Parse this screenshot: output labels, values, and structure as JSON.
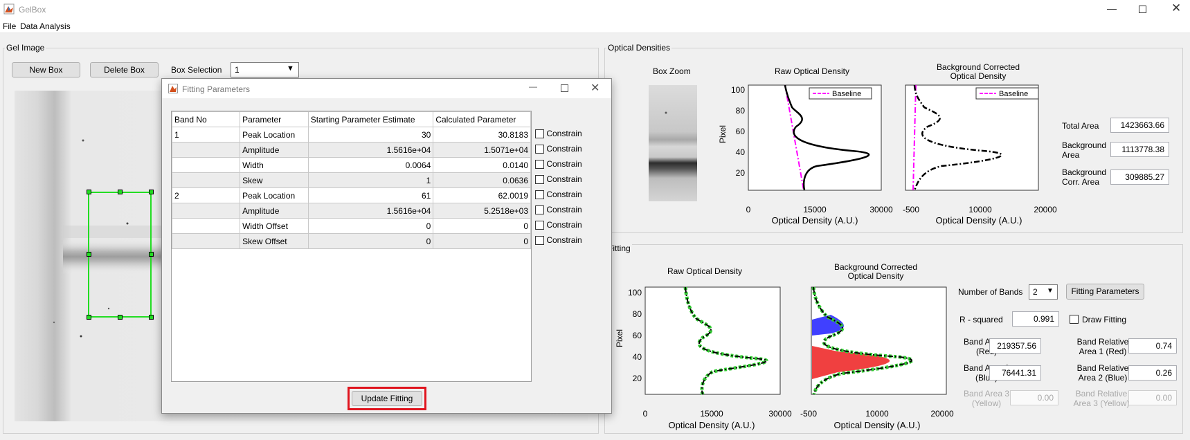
{
  "app": {
    "title": "GelBox"
  },
  "menu": [
    "File",
    "Data Analysis"
  ],
  "gel_panel": {
    "title": "Gel Image",
    "new_box": "New Box",
    "delete_box": "Delete Box",
    "box_selection_label": "Box Selection",
    "box_selection_value": "1"
  },
  "od_panel": {
    "title": "Optical Densities",
    "box_zoom": "Box Zoom",
    "raw_title": "Raw Optical Density",
    "bg_title_1": "Background Corrected",
    "bg_title_2": "Optical Density",
    "legend": "Baseline",
    "ylabel": "Pixel",
    "xlabel": "Optical Density (A.U.)",
    "raw_xticks": [
      "0",
      "15000",
      "30000"
    ],
    "bg_xticks": [
      "-500",
      "10000",
      "20000"
    ],
    "yticks": [
      "100",
      "80",
      "60",
      "40",
      "20"
    ],
    "total_area_label": "Total Area",
    "total_area": "1423663.66",
    "bg_area_label_1": "Background",
    "bg_area_label_2": "Area",
    "bg_area": "1113778.38",
    "bgc_area_label_1": "Background",
    "bgc_area_label_2": "Corr. Area",
    "bgc_area": "309885.27"
  },
  "fit_panel": {
    "title": "Fitting",
    "raw_title": "Raw Optical Density",
    "bg_title_1": "Background Corrected",
    "bg_title_2": "Optical Density",
    "ylabel": "Pixel",
    "xlabel": "Optical Density (A.U.)",
    "raw_xticks": [
      "0",
      "15000",
      "30000"
    ],
    "bg_xticks": [
      "-500",
      "10000",
      "20000"
    ],
    "yticks": [
      "100",
      "80",
      "60",
      "40",
      "20"
    ],
    "num_bands_label": "Number of Bands",
    "num_bands": "2",
    "fitting_params_button": "Fitting Parameters",
    "rsq_label": "R - squared",
    "rsq": "0.991",
    "draw_fitting": "Draw Fitting",
    "band1_l1": "Band Area 1",
    "band1_l2": "(Red)",
    "band1": "219357.56",
    "rel1_l1": "Band Relative",
    "rel1_l2": "Area 1 (Red)",
    "rel1": "0.74",
    "band2_l1": "Band Area 2",
    "band2_l2": "(Blue)",
    "band2": "76441.31",
    "rel2_l1": "Band Relative",
    "rel2_l2": "Area 2 (Blue)",
    "rel2": "0.26",
    "band3_l1": "Band Area 3",
    "band3_l2": "(Yellow)",
    "band3": "0.00",
    "rel3_l1": "Band Relative",
    "rel3_l2": "Area 3 (Yellow)",
    "rel3": "0.00"
  },
  "dialog": {
    "title": "Fitting Parameters",
    "headers": [
      "Band No",
      "Parameter",
      "Starting Parameter Estimate",
      "Calculated Parameter"
    ],
    "rows": [
      [
        "1",
        "Peak Location",
        "30",
        "30.8183"
      ],
      [
        "",
        "Amplitude",
        "1.5616e+04",
        "1.5071e+04"
      ],
      [
        "",
        "Width",
        "0.0064",
        "0.0140"
      ],
      [
        "",
        "Skew",
        "1",
        "0.0636"
      ],
      [
        "2",
        "Peak Location",
        "61",
        "62.0019"
      ],
      [
        "",
        "Amplitude",
        "1.5616e+04",
        "5.2518e+03"
      ],
      [
        "",
        "Width Offset",
        "0",
        "0"
      ],
      [
        "",
        "Skew Offset",
        "0",
        "0"
      ]
    ],
    "constrain": "Constrain",
    "update_button": "Update Fitting"
  },
  "colors": {
    "accent_box": "#e0141e",
    "roi": "#22dd22",
    "baseline": "#ff00ff",
    "band_red": "#f04040",
    "band_blue": "#4040ff",
    "fit": "#33cc33"
  }
}
